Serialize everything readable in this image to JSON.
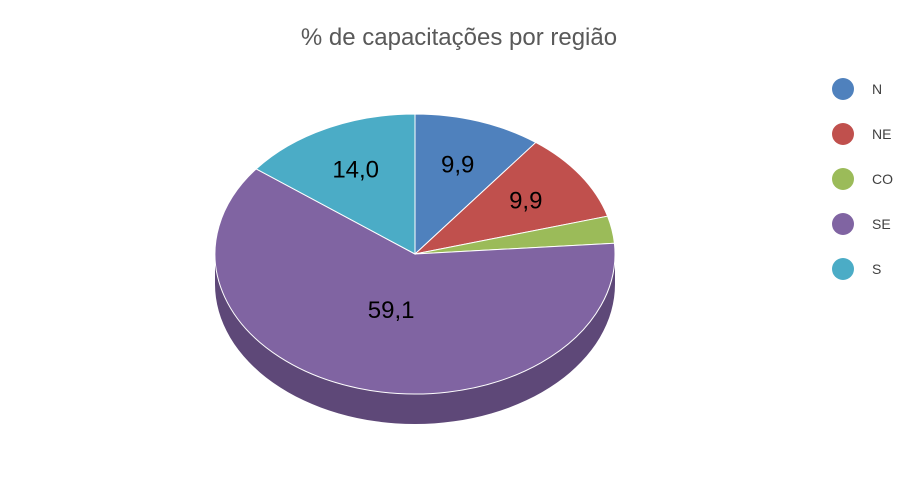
{
  "chart_data": {
    "type": "pie",
    "title": "% de capacitações por região",
    "start": "top",
    "direction": "clockwise",
    "style": "3d",
    "legend": "right",
    "slices": [
      {
        "name": "N",
        "value": 9.9,
        "label": "9,9",
        "color": "#4F81BD",
        "side_color": "#3A6090"
      },
      {
        "name": "NE",
        "value": 9.9,
        "label": "9,9",
        "color": "#C0504D",
        "side_color": "#8F3B39"
      },
      {
        "name": "CO",
        "value": 3.0,
        "label": "",
        "color": "#9BBB59",
        "side_color": "#738B42"
      },
      {
        "name": "SE",
        "value": 59.1,
        "label": "59,1",
        "color": "#8064A2",
        "side_color": "#5E4878"
      },
      {
        "name": "S",
        "value": 14.0,
        "label": "14,0",
        "color": "#4BACC6",
        "side_color": "#367F92"
      }
    ]
  }
}
